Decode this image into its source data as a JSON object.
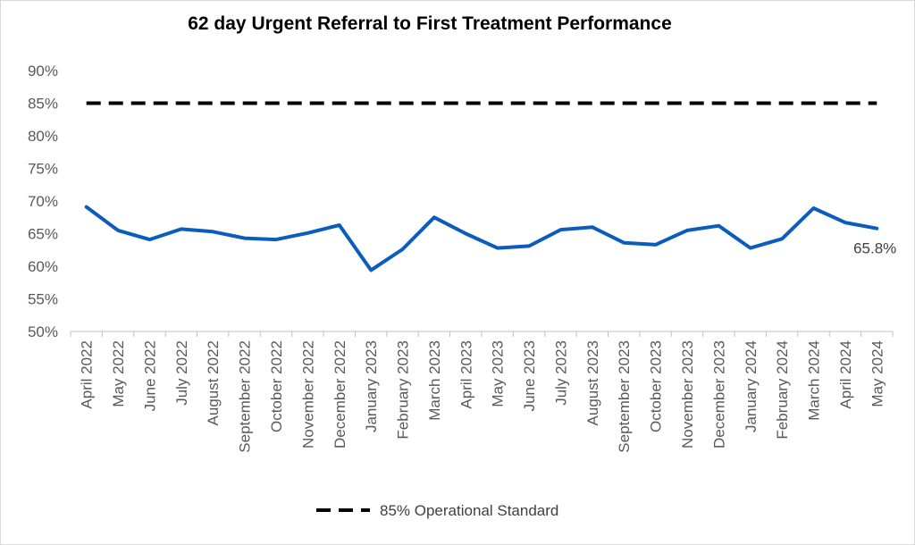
{
  "chart_data": {
    "type": "line",
    "title": "62 day Urgent Referral to First Treatment Performance",
    "xlabel": "",
    "ylabel": "",
    "ylim": [
      50,
      90
    ],
    "y_ticks": [
      "50%",
      "55%",
      "60%",
      "65%",
      "70%",
      "75%",
      "80%",
      "85%",
      "90%"
    ],
    "grid": false,
    "legend_position": "bottom",
    "categories": [
      "April 2022",
      "May 2022",
      "June 2022",
      "July 2022",
      "August 2022",
      "September 2022",
      "October 2022",
      "November 2022",
      "December 2022",
      "January 2023",
      "February 2023",
      "March 2023",
      "April 2023",
      "May 2023",
      "June 2023",
      "July 2023",
      "August 2023",
      "September 2023",
      "October 2023",
      "November 2023",
      "December 2023",
      "January 2024",
      "February 2024",
      "March 2024",
      "April 2024",
      "May 2024"
    ],
    "series": [
      {
        "color": "#0a5cbd",
        "style": "solid",
        "values": [
          69.1,
          65.5,
          64.1,
          65.7,
          65.3,
          64.3,
          64.1,
          65.1,
          66.3,
          59.4,
          62.6,
          67.5,
          65.0,
          62.8,
          63.1,
          65.6,
          66.0,
          63.6,
          63.3,
          65.5,
          66.2,
          62.8,
          64.2,
          68.9,
          66.7,
          65.8
        ]
      },
      {
        "name": "85% Operational Standard",
        "color": "#000000",
        "style": "dashed",
        "values": [
          85,
          85,
          85,
          85,
          85,
          85,
          85,
          85,
          85,
          85,
          85,
          85,
          85,
          85,
          85,
          85,
          85,
          85,
          85,
          85,
          85,
          85,
          85,
          85,
          85,
          85
        ]
      }
    ],
    "annotations": [
      {
        "text": "65.8%",
        "category": "May 2024",
        "value": 65.8
      }
    ]
  }
}
